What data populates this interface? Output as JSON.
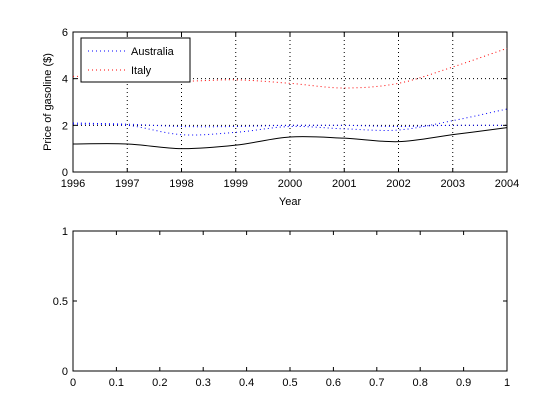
{
  "chart_data": [
    {
      "type": "line",
      "xlabel": "Year",
      "ylabel": "Price of gasoline ($)",
      "xlim": [
        1996,
        2004
      ],
      "ylim": [
        0,
        6
      ],
      "xticks": [
        1996,
        1997,
        1998,
        1999,
        2000,
        2001,
        2002,
        2003,
        2004
      ],
      "yticks": [
        0,
        2,
        4,
        6
      ],
      "xtick_labels": [
        "1996",
        "1997",
        "1998",
        "1999",
        "2000",
        "2001",
        "2002",
        "2003",
        "2004"
      ],
      "ytick_labels": [
        "0",
        "2",
        "4",
        "6"
      ],
      "grid": true,
      "legend_position": "top-left",
      "legend": [
        "Australia",
        "Italy"
      ],
      "series": [
        {
          "name": "Australia",
          "color": "#0000ff",
          "style": "dotted",
          "x": [
            1996,
            1997,
            1998,
            1999,
            2000,
            2001,
            2002,
            2003,
            2004
          ],
          "y": [
            2.05,
            2.0,
            1.6,
            1.7,
            1.95,
            1.85,
            1.8,
            2.2,
            2.7
          ]
        },
        {
          "name": "Italy",
          "color": "#ff0000",
          "style": "dotted",
          "x": [
            1996,
            1997,
            1998,
            1999,
            2000,
            2001,
            2002,
            2003,
            2004
          ],
          "y": [
            4.1,
            4.05,
            3.9,
            3.95,
            3.8,
            3.6,
            3.8,
            4.5,
            5.3
          ]
        },
        {
          "color": "#0000ff",
          "style": "dotted",
          "x": [
            1996,
            1997,
            1998,
            1999,
            2000,
            2001,
            2002,
            2003,
            2004
          ],
          "y": [
            2.1,
            2.05,
            1.95,
            1.95,
            2.0,
            2.0,
            1.95,
            2.0,
            2.0
          ]
        },
        {
          "color": "#000000",
          "style": "solid",
          "x": [
            1996,
            1997,
            1998,
            1999,
            2000,
            2001,
            2002,
            2003,
            2004
          ],
          "y": [
            1.2,
            1.2,
            1.0,
            1.15,
            1.5,
            1.45,
            1.3,
            1.6,
            1.9
          ]
        }
      ]
    },
    {
      "type": "line",
      "xlim": [
        0,
        1
      ],
      "ylim": [
        0,
        1
      ],
      "xticks": [
        0,
        0.1,
        0.2,
        0.3,
        0.4,
        0.5,
        0.6,
        0.7,
        0.8,
        0.9,
        1
      ],
      "yticks": [
        0,
        0.5,
        1
      ],
      "xtick_labels": [
        "0",
        "0.1",
        "0.2",
        "0.3",
        "0.4",
        "0.5",
        "0.6",
        "0.7",
        "0.8",
        "0.9",
        "1"
      ],
      "ytick_labels": [
        "0",
        "0.5",
        "1"
      ],
      "grid": false,
      "series": []
    }
  ]
}
